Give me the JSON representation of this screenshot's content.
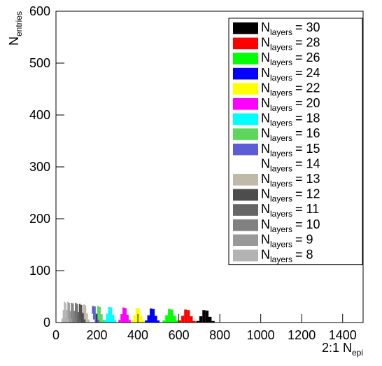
{
  "chart_data": {
    "type": "histogram",
    "xlabel": {
      "main": "2:1 N",
      "sub": "epi"
    },
    "ylabel": {
      "main": "N",
      "sub": "entries"
    },
    "legend_label": {
      "main": "N",
      "sub": "layers"
    },
    "legend": "upper right",
    "xlim": [
      0,
      1500
    ],
    "xticks": [
      0,
      200,
      400,
      600,
      800,
      1000,
      1200,
      1400
    ],
    "ylim": [
      0,
      600
    ],
    "yticks": [
      0,
      100,
      200,
      300,
      400,
      500,
      600
    ],
    "series": [
      {
        "name": "= 30",
        "color": "#000000",
        "bins": [
          685,
          700,
          715,
          730,
          745,
          760,
          775
        ],
        "values": [
          3,
          12,
          24,
          23,
          11,
          3
        ]
      },
      {
        "name": "= 28",
        "color": "#ff0000",
        "bins": [
          598,
          612,
          626,
          640,
          654,
          668,
          682
        ],
        "values": [
          4,
          13,
          25,
          24,
          12,
          3
        ]
      },
      {
        "name": "= 26",
        "color": "#00ff00",
        "bins": [
          521,
          534,
          547,
          560,
          573,
          586,
          599
        ],
        "values": [
          4,
          14,
          26,
          25,
          13,
          4
        ]
      },
      {
        "name": "= 24",
        "color": "#0000ff",
        "bins": [
          434,
          446,
          458,
          470,
          482,
          494,
          506
        ],
        "values": [
          4,
          14,
          27,
          26,
          13,
          4
        ]
      },
      {
        "name": "= 22",
        "color": "#ffff00",
        "bins": [
          367,
          378,
          389,
          400,
          411,
          422,
          433
        ],
        "values": [
          4,
          15,
          28,
          27,
          14,
          4
        ]
      },
      {
        "name": "= 20",
        "color": "#ff00ff",
        "bins": [
          305,
          315,
          325,
          335,
          345,
          355,
          365
        ],
        "values": [
          5,
          16,
          29,
          28,
          15,
          5
        ]
      },
      {
        "name": "= 18",
        "color": "#00ffff",
        "bins": [
          235,
          245,
          255,
          265,
          275,
          285,
          295
        ],
        "values": [
          5,
          17,
          30,
          29,
          15,
          5
        ]
      },
      {
        "name": "= 16",
        "color": "#5cd65c",
        "bins": [
          183,
          192,
          201,
          210,
          219,
          228,
          237
        ],
        "values": [
          5,
          18,
          32,
          30,
          16,
          5
        ]
      },
      {
        "name": "= 15",
        "color": "#5c5cd6",
        "bins": [
          158,
          167,
          176,
          185,
          194,
          203,
          212
        ],
        "values": [
          5,
          18,
          32,
          31,
          16,
          5
        ]
      },
      {
        "name": "= 14",
        "color": "#ffffff",
        "bins": [
          141,
          149,
          157,
          165,
          173,
          181,
          189
        ],
        "values": [
          6,
          19,
          34,
          32,
          17,
          6
        ]
      },
      {
        "name": "= 13",
        "color": "#c0b8a8",
        "bins": [
          116,
          124,
          132,
          140,
          148,
          156,
          164
        ],
        "values": [
          6,
          20,
          35,
          33,
          18,
          6
        ]
      },
      {
        "name": "= 12",
        "color": "#4d4d4d",
        "bins": [
          96,
          104,
          112,
          120,
          128,
          136,
          144
        ],
        "values": [
          6,
          20,
          36,
          34,
          18,
          6
        ]
      },
      {
        "name": "= 11",
        "color": "#666666",
        "bins": [
          79,
          86,
          93,
          100,
          107,
          114,
          121
        ],
        "values": [
          7,
          22,
          38,
          36,
          20,
          6
        ]
      },
      {
        "name": "= 10",
        "color": "#808080",
        "bins": [
          59,
          66,
          73,
          80,
          87,
          94,
          101
        ],
        "values": [
          7,
          22,
          38,
          37,
          20,
          7
        ]
      },
      {
        "name": "= 9",
        "color": "#999999",
        "bins": [
          44,
          50,
          56,
          62,
          68,
          74,
          80
        ],
        "values": [
          8,
          24,
          40,
          38,
          22,
          7
        ]
      },
      {
        "name": "= 8",
        "color": "#b3b3b3",
        "bins": [
          27,
          33,
          39,
          45,
          51,
          57,
          63
        ],
        "values": [
          8,
          24,
          40,
          38,
          22,
          7
        ]
      }
    ]
  }
}
